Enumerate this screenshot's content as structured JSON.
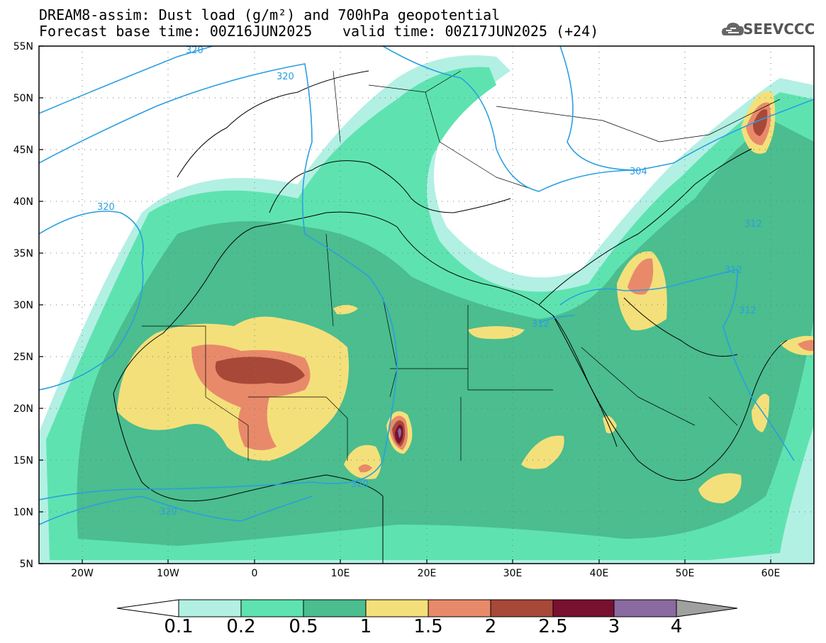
{
  "header": {
    "title_line1": "DREAM8-assim: Dust load (g/m²) and 700hPa geopotential",
    "title_line2_left": "Forecast base time: 00Z16JUN2025",
    "title_line2_right": "valid time: 00Z17JUN2025 (+24)",
    "logo_text": "SEEVCCC",
    "logo_icon": "cloud-logo-icon"
  },
  "map": {
    "lon_range": [
      -25,
      65
    ],
    "lat_range": [
      5,
      55
    ],
    "lat_labels": [
      "55N",
      "50N",
      "45N",
      "40N",
      "35N",
      "30N",
      "25N",
      "20N",
      "15N",
      "10N",
      "5N"
    ],
    "lon_labels": [
      "20W",
      "10W",
      "0",
      "10E",
      "20E",
      "30E",
      "40E",
      "50E",
      "60E"
    ],
    "contour_labels": [
      "320",
      "320",
      "320",
      "320",
      "320",
      "304",
      "312",
      "312",
      "312",
      "312"
    ],
    "contour_color": "#2a9fe0",
    "grid": true
  },
  "colorbar": {
    "levels": [
      "0.1",
      "0.2",
      "0.5",
      "1",
      "1.5",
      "2",
      "2.5",
      "3",
      "4"
    ],
    "colors": [
      "#b2f0e3",
      "#5ee3b0",
      "#4bbd8e",
      "#f4e07a",
      "#e88a6a",
      "#a84838",
      "#7a1030",
      "#8a6aa0",
      "#a0a0a0"
    ]
  }
}
